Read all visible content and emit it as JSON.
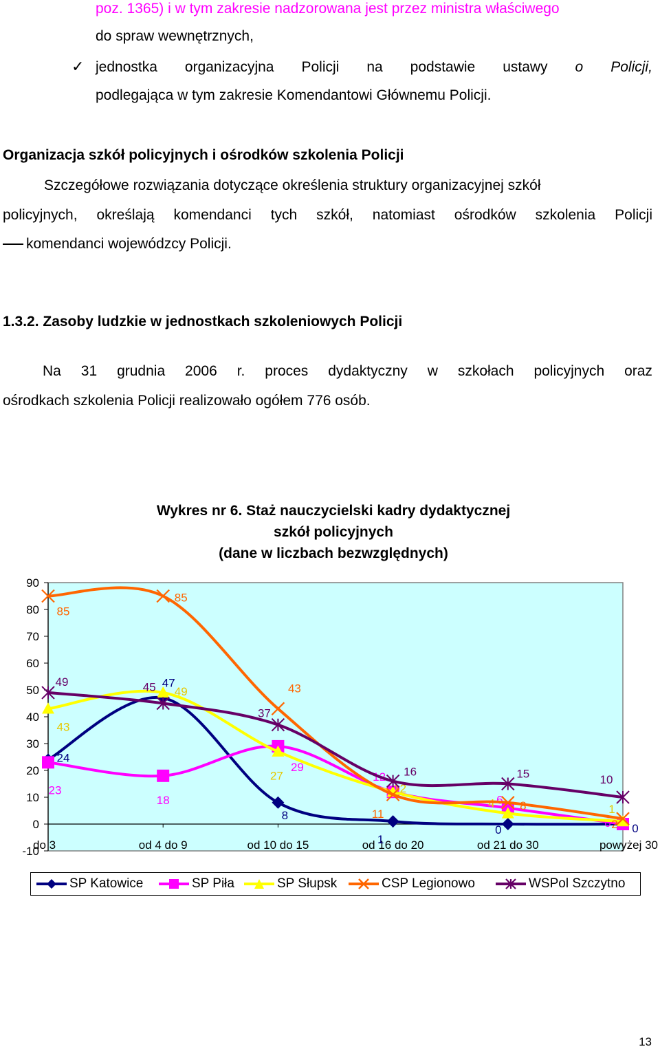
{
  "intro": {
    "line1": "poz. 1365) i w tym zakresie nadzorowana jest przez ministra właściwego",
    "line2": "do spraw wewnętrznych,",
    "bullet_words": [
      "jednostka",
      "organizacyjna",
      "Policji",
      "na",
      "podstawie",
      "ustawy",
      "o",
      "Policji,"
    ],
    "bullet_line2": "podlegająca w tym zakresie Komendantowi Głównemu Policji."
  },
  "section1": {
    "heading": "Organizacja szkół policyjnych i ośrodków szkolenia Policji",
    "p_line1": "Szczegółowe rozwiązania dotyczące określenia struktury organizacyjnej szkół",
    "p_line2": "policyjnych, określają komendanci tych szkół, natomiast ośrodków szkolenia Policji",
    "p_line3": "komendanci wojewódzcy Policji."
  },
  "section2": {
    "heading": "1.3.2. Zasoby ludzkie w jednostkach szkoleniowych Policji",
    "p_line1_words": [
      "Na",
      "31",
      "grudnia",
      "2006",
      "r.",
      "proces",
      "dydaktyczny",
      "w",
      "szkołach",
      "policyjnych",
      "oraz"
    ],
    "p_line2": "ośrodkach szkolenia Policji realizowało ogółem 776 osób."
  },
  "chart_data": {
    "type": "line",
    "title_lines": [
      "Wykres nr 6. Staż nauczycielski kadry dydaktycznej",
      "szkół policyjnych",
      "(dane w liczbach bezwzględnych)"
    ],
    "categories": [
      "do 3",
      "od 4 do 9",
      "od 10 do 15",
      "od 16 do 20",
      "od 21 do 30",
      "powyżej 30"
    ],
    "y_ticks": [
      "90",
      "80",
      "70",
      "60",
      "50",
      "40",
      "30",
      "20",
      "10",
      "0",
      "-10"
    ],
    "ylim": [
      -10,
      90
    ],
    "smooth": true,
    "legend_position": "bottom",
    "plot_background": "#ccffff",
    "series": [
      {
        "name": "SP Katowice",
        "color": "#000080",
        "marker": "diamond",
        "values": [
          24,
          47,
          8,
          1,
          0,
          0
        ],
        "labels": [
          "24",
          "47",
          "8",
          "1",
          "0",
          "0"
        ]
      },
      {
        "name": "SP Piła",
        "color": "#ff00ff",
        "marker": "square",
        "values": [
          23,
          18,
          29,
          12,
          6,
          0
        ],
        "labels": [
          "23",
          "18",
          "29",
          "12",
          "6",
          "0"
        ]
      },
      {
        "name": "SP Słupsk",
        "color": "#ffff00",
        "marker": "triangle",
        "values": [
          43,
          49,
          27,
          12,
          4,
          1
        ],
        "labels": [
          "43",
          "49",
          "27",
          "12",
          "4",
          "1"
        ]
      },
      {
        "name": "CSP Legionowo",
        "color": "#ff6600",
        "marker": "x",
        "values": [
          85,
          85,
          43,
          11,
          8,
          2
        ],
        "labels": [
          "85",
          "85",
          "43",
          "11",
          "8",
          "2"
        ]
      },
      {
        "name": "WSPol Szczytno",
        "color": "#660066",
        "marker": "star",
        "values": [
          49,
          45,
          37,
          16,
          15,
          10
        ],
        "labels": [
          "49",
          "45",
          "37",
          "16",
          "15",
          "10"
        ]
      }
    ]
  },
  "page_number": "13"
}
